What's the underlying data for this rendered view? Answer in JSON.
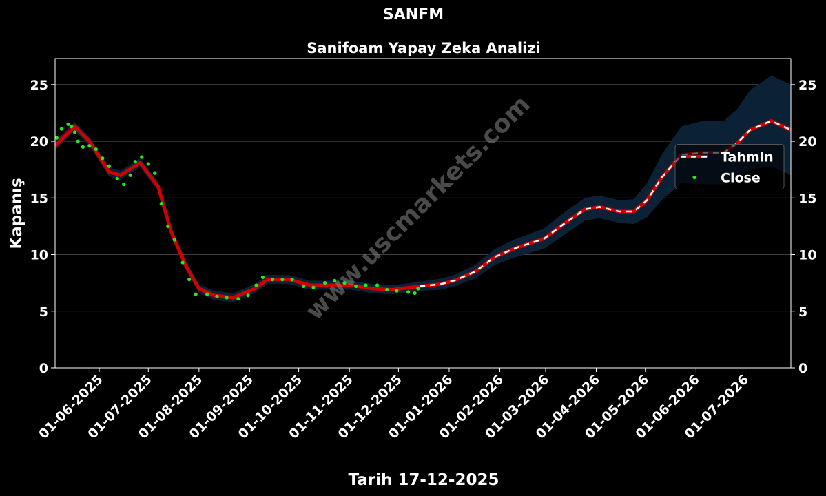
{
  "chart_data": {
    "type": "line",
    "title": "SANFM",
    "subtitle": "Sanifoam Yapay Zeka Analizi",
    "x_label": "Tarih 17-12-2025",
    "y_label": "Kapanış",
    "watermark": "www.uscmarkets.com",
    "xlim": [
      "2025-05-05",
      "2026-07-29"
    ],
    "ylim": [
      0,
      27.3
    ],
    "yticks": [
      0,
      5,
      10,
      15,
      20,
      25
    ],
    "xticks": [
      {
        "value": "2025-06-01",
        "label": "01-06-2025"
      },
      {
        "value": "2025-07-01",
        "label": "01-07-2025"
      },
      {
        "value": "2025-08-01",
        "label": "01-08-2025"
      },
      {
        "value": "2025-09-01",
        "label": "01-09-2025"
      },
      {
        "value": "2025-10-01",
        "label": "01-10-2025"
      },
      {
        "value": "2025-11-01",
        "label": "01-11-2025"
      },
      {
        "value": "2025-12-01",
        "label": "01-12-2025"
      },
      {
        "value": "2026-01-01",
        "label": "01-01-2026"
      },
      {
        "value": "2026-02-01",
        "label": "01-02-2026"
      },
      {
        "value": "2026-03-01",
        "label": "01-03-2026"
      },
      {
        "value": "2026-04-01",
        "label": "01-04-2026"
      },
      {
        "value": "2026-05-01",
        "label": "01-05-2026"
      },
      {
        "value": "2026-06-01",
        "label": "01-06-2026"
      },
      {
        "value": "2026-07-01",
        "label": "01-07-2026"
      }
    ],
    "grid": true,
    "legend": "center right",
    "series": [
      {
        "name": "Tahmin",
        "color": "#d00000",
        "band_color": "#0b2236",
        "x": [
          "2025-05-05",
          "2025-05-17",
          "2025-05-26",
          "2025-06-07",
          "2025-06-14",
          "2025-06-26",
          "2025-07-07",
          "2025-07-15",
          "2025-07-24",
          "2025-08-01",
          "2025-08-10",
          "2025-08-22",
          "2025-09-04",
          "2025-09-12",
          "2025-09-25",
          "2025-10-08",
          "2025-10-20",
          "2025-11-02",
          "2025-11-15",
          "2025-11-27",
          "2025-12-14",
          "2025-12-27",
          "2026-01-04",
          "2026-01-17",
          "2026-01-29",
          "2026-02-11",
          "2026-02-28",
          "2026-03-13",
          "2026-03-25",
          "2026-04-03",
          "2026-04-15",
          "2026-04-24",
          "2026-05-02",
          "2026-05-11",
          "2026-05-23",
          "2026-06-05",
          "2026-06-18",
          "2026-06-26",
          "2026-07-04",
          "2026-07-17",
          "2026-07-29"
        ],
        "values": [
          19.6,
          21.3,
          20.0,
          17.3,
          17.0,
          18.1,
          16.0,
          12.0,
          9.0,
          7.0,
          6.4,
          6.2,
          7.0,
          7.8,
          7.8,
          7.3,
          7.3,
          7.3,
          7.0,
          6.9,
          7.2,
          7.4,
          7.7,
          8.5,
          9.8,
          10.6,
          11.4,
          12.8,
          14.0,
          14.2,
          13.8,
          13.8,
          14.8,
          16.8,
          18.8,
          19.0,
          19.0,
          19.8,
          21.0,
          21.8,
          21.0
        ],
        "lower": [
          19.2,
          20.9,
          19.6,
          16.9,
          16.6,
          17.7,
          15.6,
          11.6,
          8.6,
          6.6,
          6.0,
          5.8,
          6.6,
          7.4,
          7.4,
          6.9,
          6.9,
          6.9,
          6.6,
          6.5,
          6.8,
          6.9,
          7.2,
          7.9,
          9.1,
          9.8,
          10.5,
          11.8,
          13.0,
          13.2,
          12.8,
          12.7,
          13.3,
          14.8,
          16.3,
          16.2,
          16.2,
          16.8,
          17.5,
          17.8,
          17.0
        ],
        "upper": [
          20.0,
          21.7,
          20.4,
          17.7,
          17.4,
          18.5,
          16.4,
          12.4,
          9.4,
          7.4,
          6.8,
          6.6,
          7.4,
          8.2,
          8.2,
          7.7,
          7.7,
          7.7,
          7.4,
          7.3,
          7.6,
          7.9,
          8.2,
          9.1,
          10.5,
          11.4,
          12.3,
          13.8,
          15.0,
          15.2,
          14.8,
          14.9,
          16.3,
          18.8,
          21.3,
          21.8,
          21.8,
          22.8,
          24.5,
          25.8,
          25.0
        ]
      },
      {
        "name": "Close",
        "color": "#22ee11",
        "x": [
          "2025-05-06",
          "2025-05-09",
          "2025-05-13",
          "2025-05-15",
          "2025-05-17",
          "2025-05-19",
          "2025-05-22",
          "2025-05-26",
          "2025-05-30",
          "2025-06-03",
          "2025-06-07",
          "2025-06-12",
          "2025-06-16",
          "2025-06-20",
          "2025-06-23",
          "2025-06-27",
          "2025-07-01",
          "2025-07-05",
          "2025-07-09",
          "2025-07-13",
          "2025-07-17",
          "2025-07-22",
          "2025-07-26",
          "2025-07-30",
          "2025-08-06",
          "2025-08-12",
          "2025-08-18",
          "2025-08-25",
          "2025-08-31",
          "2025-09-05",
          "2025-09-09",
          "2025-09-15",
          "2025-09-21",
          "2025-09-27",
          "2025-10-04",
          "2025-10-10",
          "2025-10-17",
          "2025-10-23",
          "2025-10-29",
          "2025-11-05",
          "2025-11-11",
          "2025-11-18",
          "2025-11-24",
          "2025-11-30",
          "2025-12-07",
          "2025-12-11",
          "2025-12-13"
        ],
        "values": [
          20.3,
          21.1,
          21.5,
          21.3,
          20.8,
          20.0,
          19.5,
          19.6,
          19.3,
          18.5,
          17.8,
          16.7,
          16.2,
          17.0,
          18.2,
          18.6,
          18.0,
          17.2,
          14.5,
          12.5,
          11.3,
          9.3,
          7.8,
          6.5,
          6.5,
          6.3,
          6.2,
          6.1,
          6.4,
          7.3,
          8.0,
          7.8,
          7.8,
          7.8,
          7.2,
          7.1,
          7.5,
          7.7,
          7.5,
          7.2,
          7.3,
          7.3,
          6.9,
          6.8,
          6.7,
          6.6,
          7.0
        ]
      }
    ]
  }
}
